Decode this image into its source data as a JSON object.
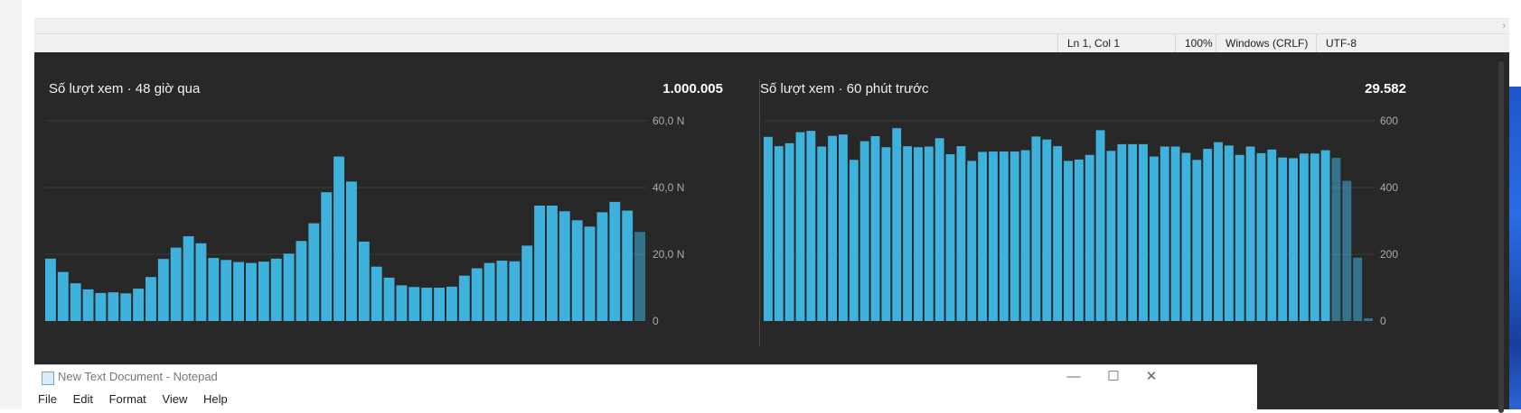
{
  "status_bar": {
    "position": "Ln 1, Col 1",
    "zoom": "100%",
    "line_ending": "Windows (CRLF)",
    "encoding": "UTF-8"
  },
  "cards": {
    "left": {
      "title": "Số lượt xem · 48 giờ qua",
      "total": "1.000.005"
    },
    "right": {
      "title": "Số lượt xem · 60 phút trước",
      "total": "29.582"
    }
  },
  "chart_data": [
    {
      "type": "bar",
      "title": "Số lượt xem · 48 giờ qua",
      "y_tick_labels": [
        "0",
        "20,0 N",
        "40,0 N",
        "60,0 N"
      ],
      "ylim": [
        0,
        60000
      ],
      "grid": true,
      "bar_color": "#3eb1dc",
      "values": [
        18700,
        14700,
        11300,
        9500,
        8400,
        8600,
        8300,
        9700,
        13200,
        18600,
        22000,
        25400,
        23300,
        18900,
        18300,
        17700,
        17400,
        17800,
        18700,
        20200,
        24000,
        29300,
        38600,
        49300,
        41800,
        23800,
        16300,
        13000,
        10700,
        10200,
        10000,
        10000,
        10300,
        13600,
        15800,
        17400,
        18100,
        17900,
        22600,
        34600,
        34600,
        32900,
        30200,
        28300,
        32600,
        35700,
        33100,
        26700
      ]
    },
    {
      "type": "bar",
      "title": "Số lượt xem · 60 phút trước",
      "y_tick_labels": [
        "0",
        "200",
        "400",
        "600"
      ],
      "ylim": [
        0,
        600
      ],
      "grid": true,
      "bar_color": "#3eb1dc",
      "values": [
        552,
        524,
        533,
        566,
        570,
        523,
        555,
        559,
        483,
        539,
        554,
        521,
        578,
        524,
        521,
        523,
        548,
        500,
        524,
        480,
        507,
        508,
        508,
        508,
        512,
        553,
        544,
        524,
        480,
        484,
        498,
        572,
        510,
        530,
        530,
        530,
        493,
        523,
        523,
        504,
        483,
        516,
        536,
        526,
        498,
        523,
        503,
        514,
        490,
        488,
        502,
        502,
        512,
        489,
        420,
        190,
        8
      ]
    }
  ],
  "notepad_bottom": {
    "title": "New Text Document - Notepad",
    "menu": [
      "File",
      "Edit",
      "Format",
      "View",
      "Help"
    ],
    "minimize": "—",
    "maximize": "☐",
    "close": "✕"
  }
}
